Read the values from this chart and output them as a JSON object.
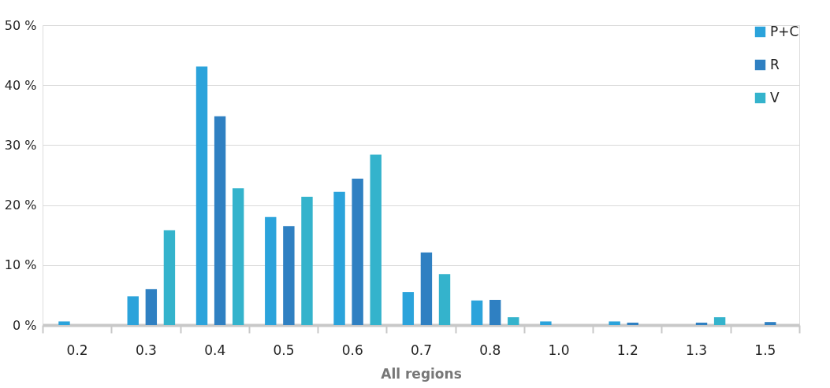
{
  "chart_data": {
    "type": "bar",
    "xlabel": "All regions",
    "categories": [
      "0.2",
      "0.3",
      "0.4",
      "0.5",
      "0.6",
      "0.7",
      "0.8",
      "1.0",
      "1.2",
      "1.3",
      "1.5"
    ],
    "series": [
      {
        "name": "P+C",
        "color": "#2ba3db",
        "values": [
          0.6,
          4.8,
          43.1,
          18.0,
          22.2,
          5.5,
          4.1,
          0.6,
          0.6,
          0,
          0
        ]
      },
      {
        "name": "R",
        "color": "#2f80c2",
        "values": [
          0,
          6.0,
          34.8,
          16.5,
          24.4,
          12.1,
          4.2,
          0,
          0.4,
          0.4,
          0.5
        ]
      },
      {
        "name": "V",
        "color": "#34b3cc",
        "values": [
          0,
          15.8,
          22.8,
          21.4,
          28.4,
          8.5,
          1.3,
          0,
          0,
          1.3,
          0
        ]
      }
    ],
    "ylim": [
      0,
      50
    ],
    "yticks": [
      {
        "value": 0,
        "label": "0 %"
      },
      {
        "value": 10,
        "label": "10 %"
      },
      {
        "value": 20,
        "label": "20 %"
      },
      {
        "value": 30,
        "label": "30 %"
      },
      {
        "value": 40,
        "label": "40 %"
      },
      {
        "value": 50,
        "label": "50 %"
      }
    ],
    "grid": "y",
    "legend": "top right"
  }
}
